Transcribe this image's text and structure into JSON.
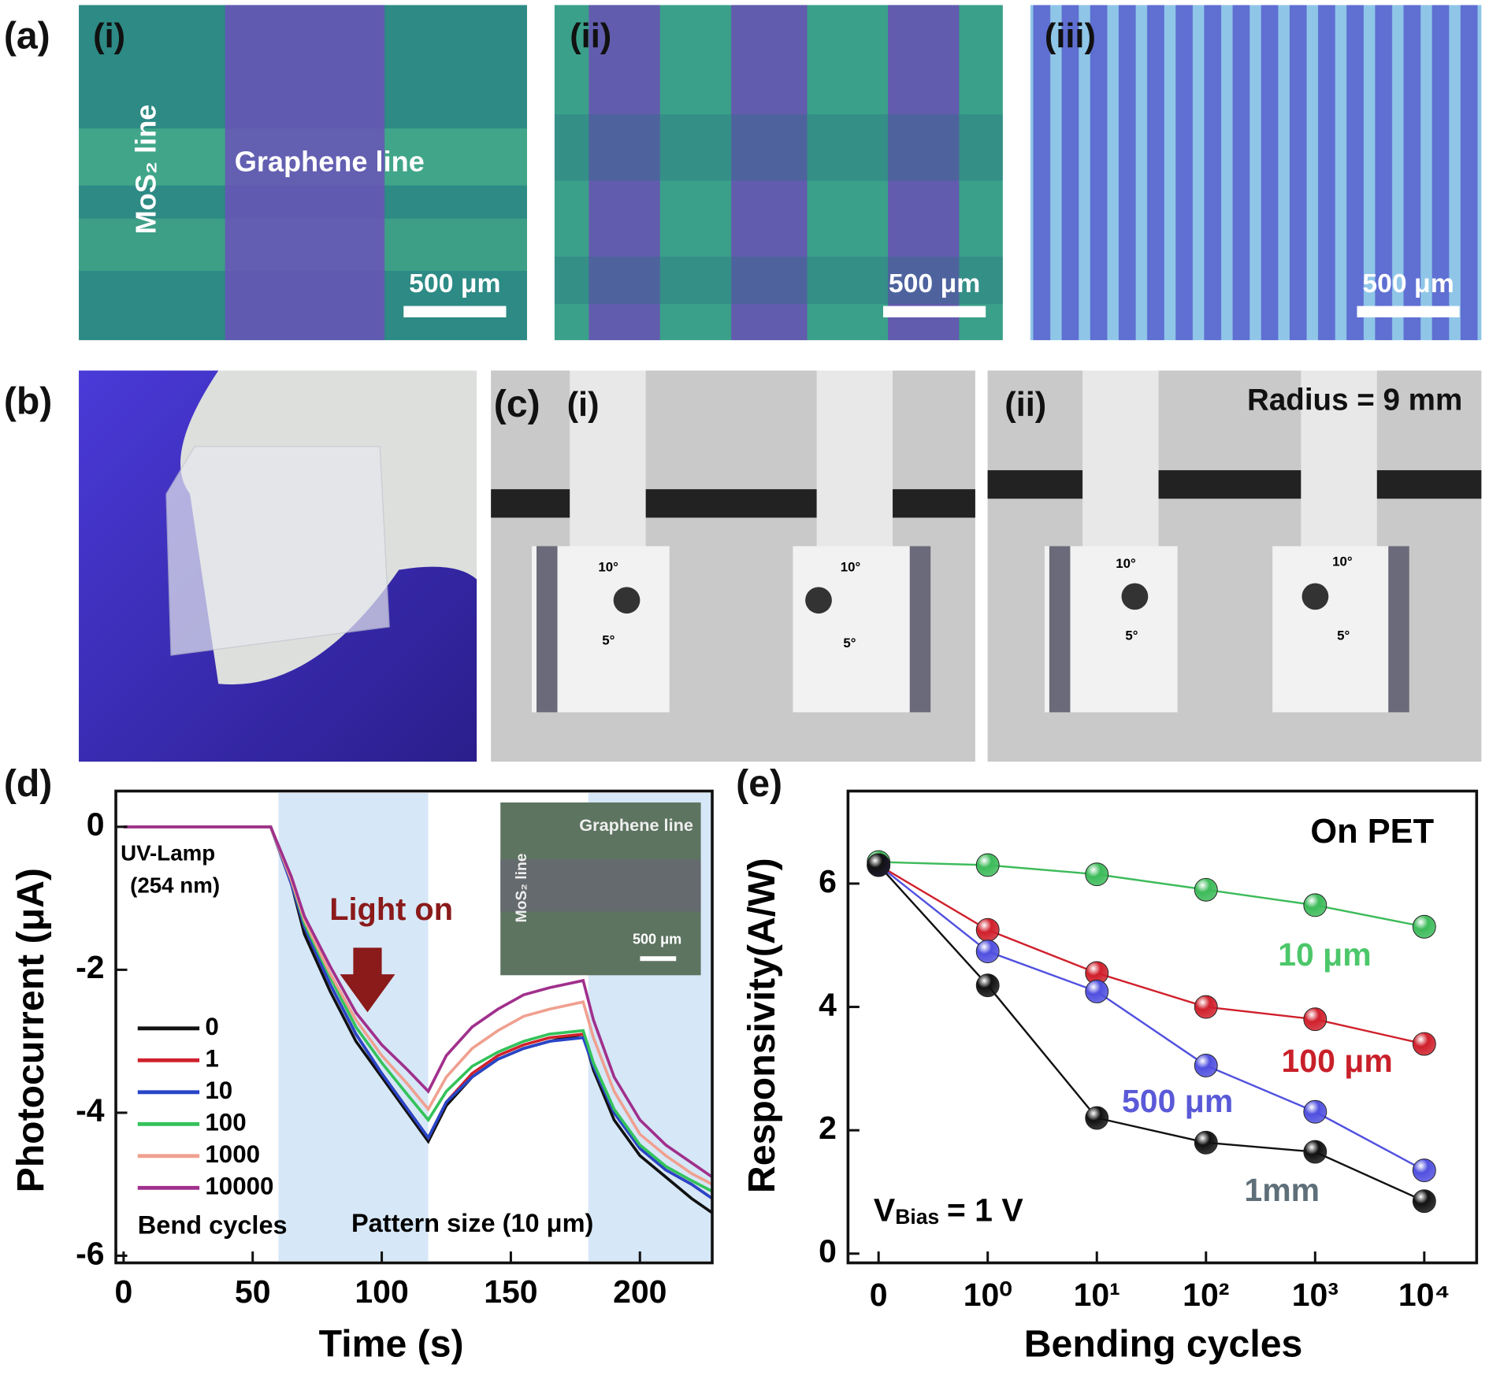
{
  "panel_a": {
    "label": "(a)",
    "sub_labels": [
      "(i)",
      "(ii)",
      "(iii)"
    ],
    "mos2_line": "MoS₂ line",
    "graphene_line": "Graphene line",
    "scale_bars": [
      "500 μm",
      "500 μm",
      "500 μm"
    ]
  },
  "panel_b": {
    "label": "(b)"
  },
  "panel_c": {
    "label": "(c)",
    "sub_labels": [
      "(i)",
      "(ii)"
    ],
    "radius": "Radius = 9 mm",
    "angles": [
      "10°",
      "10°",
      "5°",
      "5°",
      "10°",
      "10°",
      "5°",
      "5°"
    ]
  },
  "chart_data": [
    {
      "type": "line",
      "panel_label": "(d)",
      "x_label": "Time (s)",
      "y_label": "Photocurrent (μA)",
      "xlim": [
        -3,
        228
      ],
      "xticks": [
        0,
        50,
        100,
        150,
        200
      ],
      "ylim": [
        -6.1,
        0.5
      ],
      "yticks": [
        0,
        -2,
        -4,
        -6
      ],
      "shaded_regions": [
        [
          60,
          118
        ],
        [
          180,
          228
        ]
      ],
      "x": [
        0,
        20,
        40,
        57,
        65,
        70,
        80,
        90,
        100,
        110,
        118,
        125,
        135,
        145,
        155,
        165,
        178,
        182,
        190,
        200,
        210,
        220,
        228
      ],
      "series": [
        {
          "name": "0",
          "color": "#111111",
          "values": [
            0,
            0,
            0,
            0,
            -0.8,
            -1.5,
            -2.3,
            -3.0,
            -3.5,
            -4.0,
            -4.4,
            -3.9,
            -3.5,
            -3.25,
            -3.1,
            -3.0,
            -2.9,
            -3.4,
            -4.1,
            -4.6,
            -4.9,
            -5.2,
            -5.4
          ]
        },
        {
          "name": "1",
          "color": "#d0202c",
          "values": [
            0,
            0,
            0,
            0,
            -0.8,
            -1.4,
            -2.2,
            -2.9,
            -3.45,
            -3.95,
            -4.35,
            -3.85,
            -3.45,
            -3.2,
            -3.05,
            -2.95,
            -2.9,
            -3.35,
            -4.0,
            -4.5,
            -4.8,
            -5.0,
            -5.2
          ]
        },
        {
          "name": "10",
          "color": "#2845c8",
          "values": [
            0,
            0,
            0,
            0,
            -0.8,
            -1.4,
            -2.2,
            -2.9,
            -3.45,
            -3.95,
            -4.35,
            -3.85,
            -3.5,
            -3.25,
            -3.1,
            -3.0,
            -2.95,
            -3.35,
            -4.0,
            -4.5,
            -4.8,
            -5.0,
            -5.2
          ]
        },
        {
          "name": "100",
          "color": "#33c25a",
          "values": [
            0,
            0,
            0,
            0,
            -0.75,
            -1.35,
            -2.1,
            -2.8,
            -3.3,
            -3.75,
            -4.1,
            -3.7,
            -3.35,
            -3.15,
            -3.0,
            -2.9,
            -2.85,
            -3.3,
            -3.95,
            -4.45,
            -4.75,
            -4.95,
            -5.1
          ]
        },
        {
          "name": "1000",
          "color": "#f0a090",
          "values": [
            0,
            0,
            0,
            0,
            -0.75,
            -1.3,
            -2.05,
            -2.7,
            -3.2,
            -3.6,
            -3.95,
            -3.5,
            -3.1,
            -2.85,
            -2.65,
            -2.55,
            -2.45,
            -2.95,
            -3.7,
            -4.3,
            -4.6,
            -4.85,
            -5.0
          ]
        },
        {
          "name": "10000",
          "color": "#a0308c",
          "values": [
            0,
            0,
            0,
            0,
            -0.7,
            -1.25,
            -1.95,
            -2.6,
            -3.05,
            -3.4,
            -3.7,
            -3.2,
            -2.8,
            -2.55,
            -2.35,
            -2.25,
            -2.15,
            -2.7,
            -3.5,
            -4.1,
            -4.45,
            -4.7,
            -4.9
          ]
        }
      ],
      "legend_title": "Bend cycles",
      "annotations": {
        "lamp": [
          "UV-Lamp",
          "(254 nm)"
        ],
        "light_on": "Light on",
        "pattern": "Pattern size (10 μm)",
        "inset": [
          "Graphene line",
          "MoS₂ line",
          "500 μm"
        ]
      }
    },
    {
      "type": "line",
      "panel_label": "(e)",
      "x_label": "Bending cycles",
      "y_label": "Responsivity(A/W)",
      "categories": [
        "0",
        "10⁰",
        "10¹",
        "10²",
        "10³",
        "10⁴"
      ],
      "ylim": [
        -0.15,
        7.5
      ],
      "yticks": [
        0,
        2,
        4,
        6
      ],
      "series": [
        {
          "name": "10 μm",
          "color": "#3dbb5a",
          "label_color": "#4cc76a",
          "values": [
            6.35,
            6.3,
            6.15,
            5.9,
            5.65,
            5.3
          ]
        },
        {
          "name": "100 μm",
          "color": "#d0202c",
          "label_color": "#c8202a",
          "values": [
            6.3,
            5.25,
            4.55,
            4.0,
            3.8,
            3.4
          ]
        },
        {
          "name": "500 μm",
          "color": "#5050e0",
          "label_color": "#5a5ad8",
          "values": [
            6.3,
            4.9,
            4.25,
            3.05,
            2.3,
            1.35
          ]
        },
        {
          "name": "1mm",
          "color": "#111111",
          "label_color": "#5f6f7a",
          "values": [
            6.3,
            4.35,
            2.2,
            1.8,
            1.65,
            0.85
          ]
        }
      ],
      "annotations": {
        "on_pet": "On PET",
        "vbias": [
          "V",
          "Bias",
          "= 1 V"
        ]
      }
    }
  ]
}
